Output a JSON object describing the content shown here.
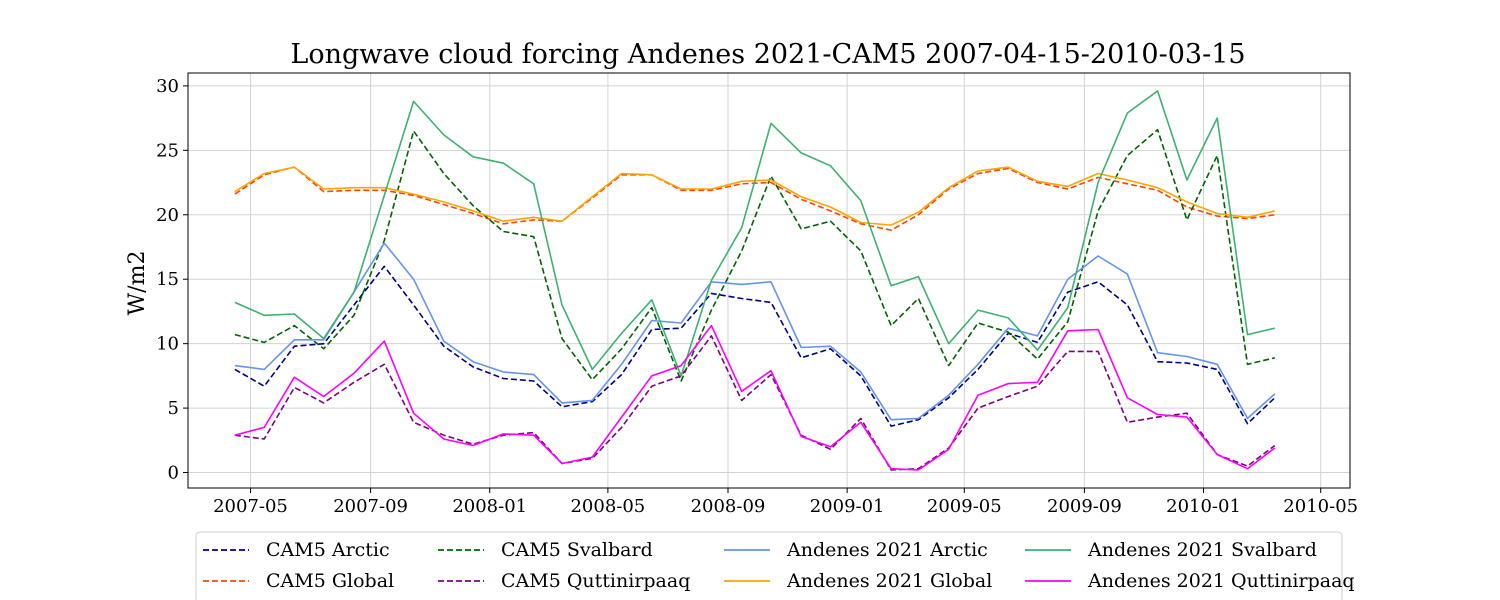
{
  "chart_data": {
    "type": "line",
    "title": "Longwave cloud forcing Andenes 2021-CAM5 2007-04-15-2010-03-15",
    "xlabel": "",
    "ylabel": "W/m2",
    "x": [
      "2007-04-15",
      "2007-05-15",
      "2007-06-15",
      "2007-07-15",
      "2007-08-15",
      "2007-09-15",
      "2007-10-15",
      "2007-11-15",
      "2007-12-15",
      "2008-01-15",
      "2008-02-15",
      "2008-03-15",
      "2008-04-15",
      "2008-05-15",
      "2008-06-15",
      "2008-07-15",
      "2008-08-15",
      "2008-09-15",
      "2008-10-15",
      "2008-11-15",
      "2008-12-15",
      "2009-01-15",
      "2009-02-15",
      "2009-03-15",
      "2009-04-15",
      "2009-05-15",
      "2009-06-15",
      "2009-07-15",
      "2009-08-15",
      "2009-09-15",
      "2009-10-15",
      "2009-11-15",
      "2009-12-15",
      "2010-01-15",
      "2010-02-15",
      "2010-03-15"
    ],
    "x_ticks": [
      "2007-05",
      "2007-09",
      "2008-01",
      "2008-05",
      "2008-09",
      "2009-01",
      "2009-05",
      "2009-09",
      "2010-01",
      "2010-05"
    ],
    "ylim": [
      -1.2,
      31
    ],
    "y_ticks": [
      0,
      5,
      10,
      15,
      20,
      25,
      30
    ],
    "grid": true,
    "legend_position": "bottom",
    "series": [
      {
        "name": "CAM5 Arctic",
        "color": "#00008b",
        "dash": true,
        "values": [
          8.0,
          6.7,
          9.8,
          10.0,
          13.0,
          16.0,
          13.0,
          9.8,
          8.2,
          7.3,
          7.1,
          5.1,
          5.5,
          7.6,
          11.1,
          11.2,
          13.9,
          13.5,
          13.2,
          8.9,
          9.6,
          7.5,
          3.6,
          4.1,
          5.8,
          8.0,
          10.8,
          10.1,
          14.0,
          14.8,
          13.0,
          8.6,
          8.5,
          8.0,
          3.8,
          5.8
        ]
      },
      {
        "name": "CAM5 Global",
        "color": "#ff4500",
        "dash": true,
        "values": [
          21.6,
          23.1,
          23.7,
          21.8,
          21.9,
          21.9,
          21.5,
          20.8,
          20.1,
          19.3,
          19.6,
          19.5,
          21.3,
          23.1,
          23.1,
          21.9,
          21.9,
          22.4,
          22.5,
          21.2,
          20.3,
          19.3,
          18.8,
          20.0,
          22.0,
          23.2,
          23.6,
          22.5,
          22.0,
          22.9,
          22.4,
          21.9,
          20.6,
          19.9,
          19.7,
          20.0
        ]
      },
      {
        "name": "CAM5 Svalbard",
        "color": "#006400",
        "dash": true,
        "values": [
          10.7,
          10.1,
          11.4,
          9.6,
          12.2,
          18.0,
          26.5,
          23.2,
          20.7,
          18.7,
          18.3,
          10.4,
          7.2,
          9.6,
          12.8,
          7.1,
          12.6,
          17.2,
          23.0,
          18.9,
          19.5,
          17.2,
          11.4,
          13.5,
          8.3,
          11.6,
          10.9,
          8.8,
          11.7,
          20.3,
          24.6,
          26.6,
          19.6,
          24.6,
          8.4,
          8.9
        ]
      },
      {
        "name": "CAM5 Quttinirpaaq",
        "color": "#800080",
        "dash": true,
        "values": [
          2.9,
          2.6,
          6.6,
          5.4,
          7.0,
          8.4,
          3.9,
          2.9,
          2.2,
          2.9,
          3.1,
          0.7,
          1.1,
          3.5,
          6.7,
          7.5,
          10.6,
          5.6,
          7.6,
          2.9,
          1.8,
          4.2,
          0.2,
          0.3,
          1.9,
          5.0,
          5.9,
          6.7,
          9.4,
          9.4,
          3.9,
          4.3,
          4.6,
          1.4,
          0.5,
          2.1
        ]
      },
      {
        "name": "Andenes 2021 Arctic",
        "color": "#6495ed",
        "dash": false,
        "values": [
          8.3,
          8.0,
          10.3,
          10.3,
          14.0,
          17.8,
          15.0,
          10.2,
          8.6,
          7.8,
          7.6,
          5.4,
          5.6,
          8.4,
          11.8,
          11.6,
          14.8,
          14.6,
          14.8,
          9.7,
          9.8,
          7.8,
          4.1,
          4.2,
          6.0,
          8.4,
          11.2,
          10.6,
          15.0,
          16.8,
          15.4,
          9.3,
          9.0,
          8.4,
          4.2,
          6.1
        ]
      },
      {
        "name": "Andenes 2021 Global",
        "color": "#ffa500",
        "dash": false,
        "values": [
          21.8,
          23.2,
          23.7,
          22.0,
          22.1,
          22.1,
          21.6,
          21.0,
          20.3,
          19.5,
          19.8,
          19.5,
          21.4,
          23.2,
          23.1,
          22.0,
          22.0,
          22.6,
          22.7,
          21.4,
          20.6,
          19.4,
          19.2,
          20.2,
          22.1,
          23.4,
          23.7,
          22.6,
          22.2,
          23.2,
          22.7,
          22.1,
          21.0,
          20.1,
          19.8,
          20.3
        ]
      },
      {
        "name": "Andenes 2021 Svalbard",
        "color": "#3cb371",
        "dash": false,
        "values": [
          13.2,
          12.2,
          12.3,
          10.4,
          14.0,
          21.5,
          28.8,
          26.2,
          24.5,
          24.0,
          22.4,
          13.0,
          8.0,
          10.8,
          13.4,
          7.5,
          14.9,
          19.0,
          27.1,
          24.8,
          23.8,
          21.1,
          14.5,
          15.2,
          10.0,
          12.6,
          12.0,
          9.5,
          12.8,
          22.5,
          27.9,
          29.6,
          22.7,
          27.5,
          10.7,
          11.2
        ]
      },
      {
        "name": "Andenes 2021 Quttinirpaaq",
        "color": "#ff00ff",
        "dash": false,
        "values": [
          2.9,
          3.5,
          7.4,
          5.9,
          7.7,
          10.2,
          4.6,
          2.6,
          2.1,
          3.0,
          2.9,
          0.7,
          1.2,
          4.3,
          7.5,
          8.3,
          11.4,
          6.3,
          7.9,
          2.8,
          2.0,
          3.9,
          0.3,
          0.2,
          1.8,
          6.0,
          6.9,
          7.0,
          11.0,
          11.1,
          5.8,
          4.5,
          4.3,
          1.4,
          0.3,
          1.9
        ]
      }
    ]
  }
}
